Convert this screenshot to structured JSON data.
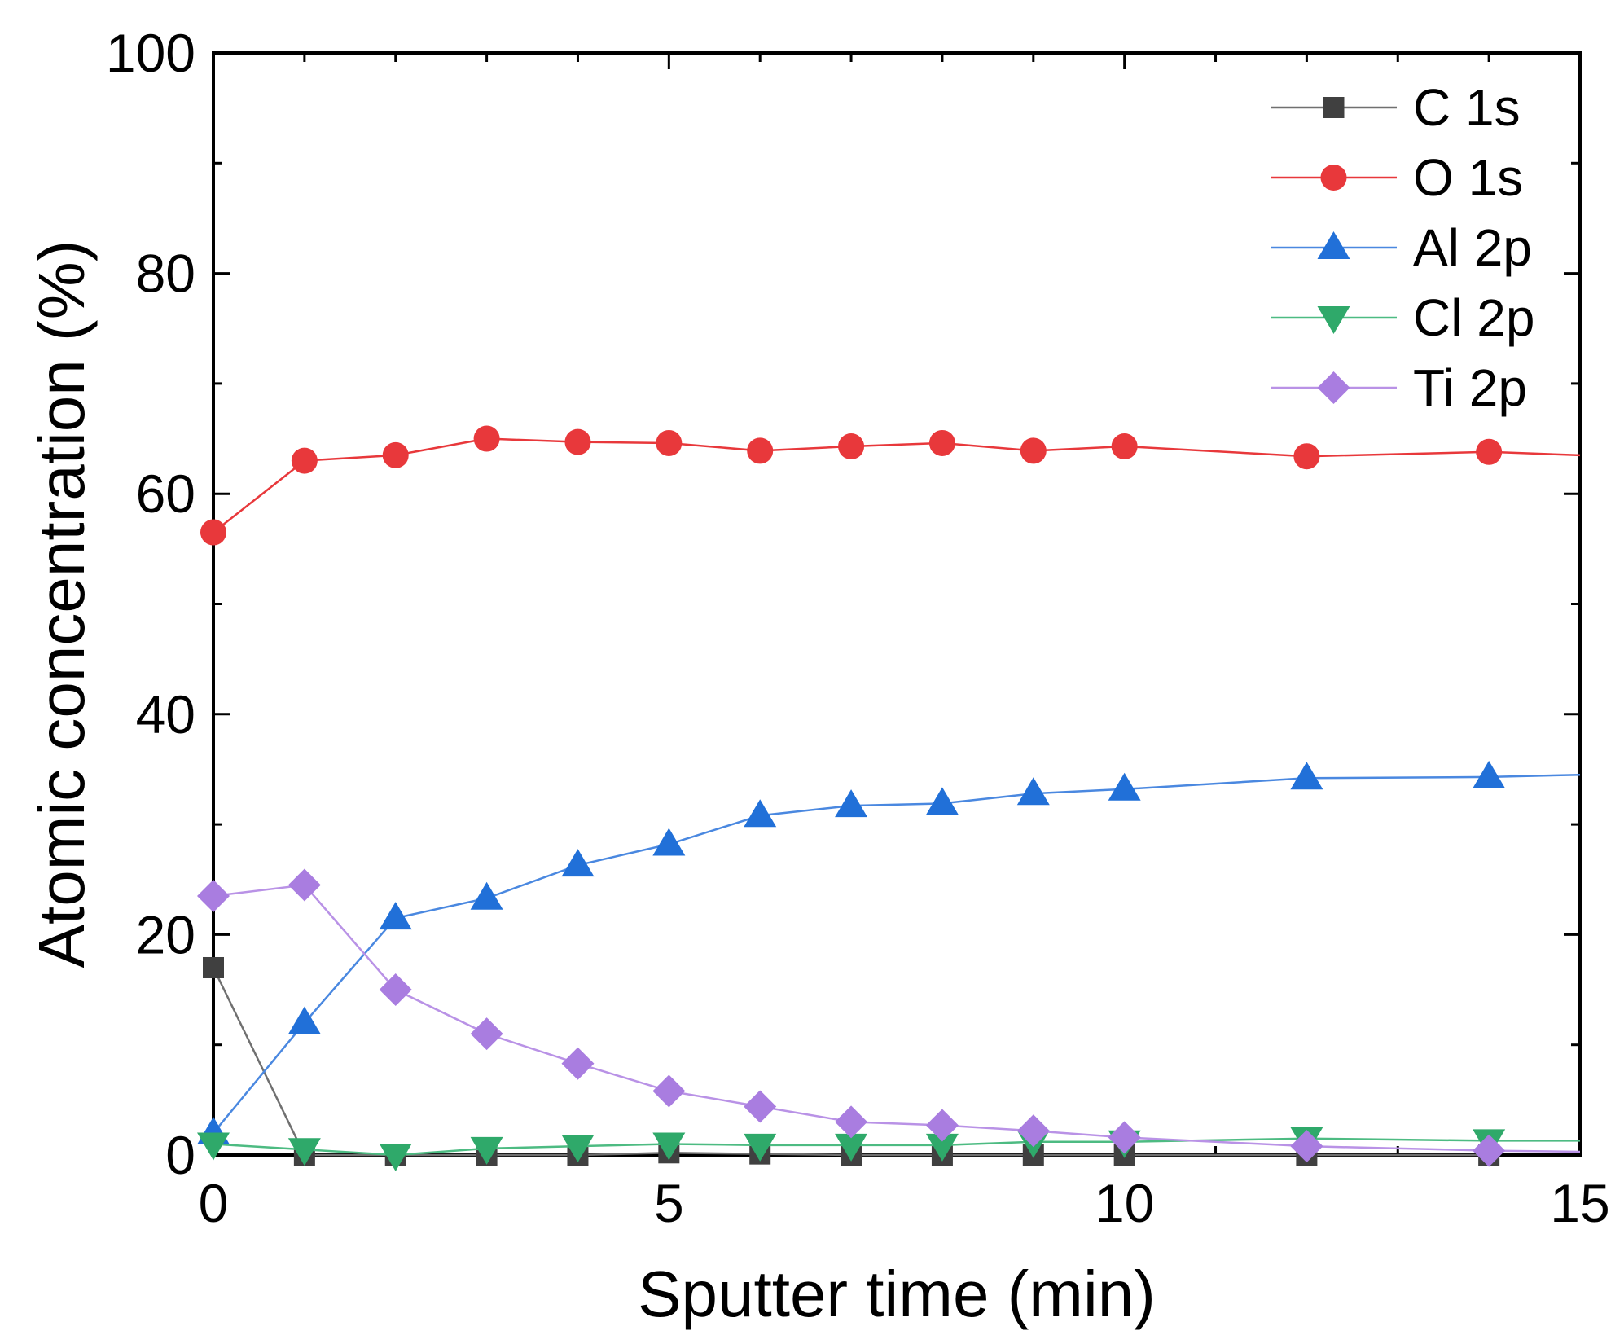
{
  "chart_data": {
    "type": "line",
    "title": "",
    "xlabel": "Sputter time (min)",
    "ylabel": "Atomic concentration (%)",
    "xlim": [
      0,
      15
    ],
    "ylim": [
      0,
      100
    ],
    "xticks": [
      0,
      5,
      10,
      15
    ],
    "yticks": [
      0,
      20,
      40,
      60,
      80,
      100
    ],
    "xtick_labels": [
      "0",
      "5",
      "10",
      "15"
    ],
    "ytick_labels": [
      "0",
      "20",
      "40",
      "60",
      "80",
      "100"
    ],
    "grid": false,
    "legend_position": "top-right",
    "series": [
      {
        "name": "C 1s",
        "marker": "square",
        "color": "#404040",
        "line_color": "#707070",
        "x": [
          0,
          1,
          2,
          3,
          4,
          5,
          6,
          7,
          8,
          9,
          10,
          12,
          14
        ],
        "y": [
          17,
          0,
          0,
          0,
          0,
          0.2,
          0.1,
          0,
          0,
          0,
          0,
          0,
          0
        ]
      },
      {
        "name": "O 1s",
        "marker": "circle",
        "color": "#e8383b",
        "line_color": "#e8383b",
        "x": [
          0,
          1,
          2,
          3,
          4,
          5,
          6,
          7,
          8,
          9,
          10,
          12,
          14,
          15
        ],
        "y": [
          56.5,
          63,
          63.5,
          65,
          64.7,
          64.6,
          63.9,
          64.3,
          64.6,
          63.9,
          64.3,
          63.4,
          63.8,
          63.5
        ]
      },
      {
        "name": "Al 2p",
        "marker": "triangle-up",
        "color": "#2170d8",
        "line_color": "#4a88e0",
        "x": [
          0,
          1,
          2,
          3,
          4,
          5,
          6,
          7,
          8,
          9,
          10,
          12,
          14,
          15
        ],
        "y": [
          2,
          12,
          21.5,
          23.3,
          26.3,
          28.2,
          30.8,
          31.7,
          31.9,
          32.8,
          33.2,
          34.2,
          34.3,
          34.5
        ]
      },
      {
        "name": "Cl 2p",
        "marker": "triangle-down",
        "color": "#2fa96a",
        "line_color": "#4dbb82",
        "x": [
          0,
          1,
          2,
          3,
          4,
          5,
          6,
          7,
          8,
          9,
          10,
          12,
          14,
          15
        ],
        "y": [
          1,
          0.5,
          0,
          0.6,
          0.8,
          1,
          0.9,
          0.9,
          0.9,
          1.2,
          1.2,
          1.5,
          1.3,
          1.3
        ]
      },
      {
        "name": "Ti 2p",
        "marker": "diamond",
        "color": "#a97de0",
        "line_color": "#b992e6",
        "x": [
          0,
          1,
          2,
          3,
          4,
          5,
          6,
          7,
          8,
          9,
          10,
          12,
          14,
          15
        ],
        "y": [
          23.5,
          24.5,
          15,
          11,
          8.3,
          5.8,
          4.4,
          3,
          2.7,
          2.2,
          1.6,
          0.8,
          0.4,
          0.3
        ]
      }
    ]
  }
}
